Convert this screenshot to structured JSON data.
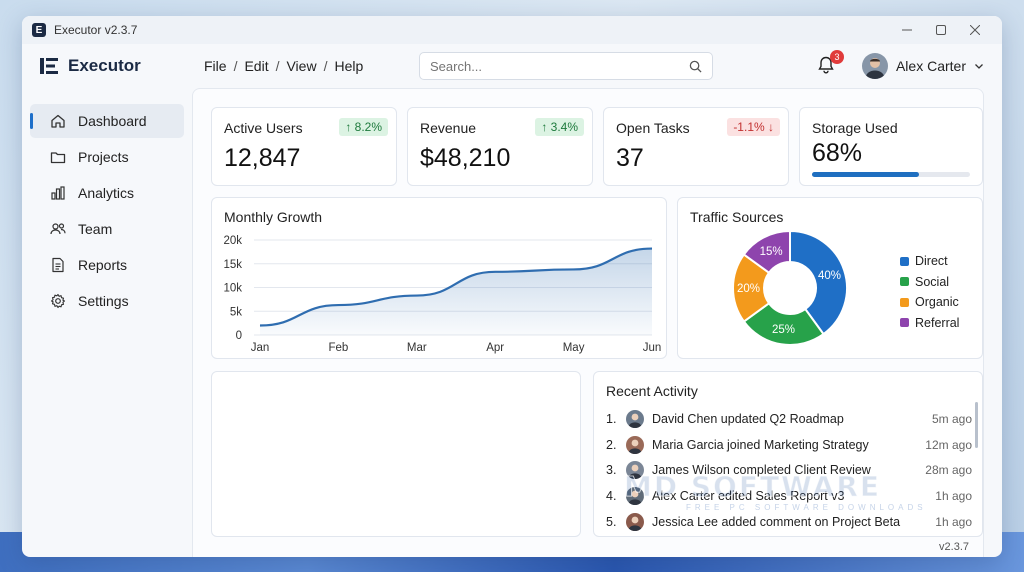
{
  "window": {
    "title": "Executor v2.3.7",
    "app_badge": "E"
  },
  "header": {
    "app_name": "Executor",
    "menu": [
      "File",
      "Edit",
      "View",
      "Help"
    ],
    "search_placeholder": "Search...",
    "notifications": 3,
    "user_name": "Alex Carter"
  },
  "sidebar": {
    "items": [
      {
        "label": "Dashboard",
        "icon": "home-icon",
        "active": true
      },
      {
        "label": "Projects",
        "icon": "folder-icon"
      },
      {
        "label": "Analytics",
        "icon": "bar-chart-icon"
      },
      {
        "label": "Team",
        "icon": "users-icon"
      },
      {
        "label": "Reports",
        "icon": "document-icon"
      },
      {
        "label": "Settings",
        "icon": "gear-icon"
      }
    ]
  },
  "kpis": {
    "active_users": {
      "title": "Active Users",
      "value": "12,847",
      "change": "↑ 8.2%"
    },
    "revenue": {
      "title": "Revenue",
      "value": "$48,210",
      "change": "↑ 3.4%"
    },
    "open_tasks": {
      "title": "Open Tasks",
      "value": "37",
      "change": "-1.1% ↓"
    },
    "storage": {
      "title": "Storage Used",
      "value": "68%",
      "fraction": 0.68
    }
  },
  "chart_data": [
    {
      "type": "area",
      "title": "Monthly Growth",
      "categories": [
        "Jan",
        "Feb",
        "Mar",
        "Apr",
        "May",
        "Jun"
      ],
      "values": [
        2000,
        6300,
        8300,
        13300,
        13800,
        18200
      ],
      "y_ticks": [
        "0",
        "5k",
        "10k",
        "15k",
        "20k"
      ],
      "ylim": [
        0,
        20000
      ],
      "grid": true,
      "color": "#2f6db0"
    },
    {
      "type": "pie",
      "title": "Traffic Sources",
      "legend_position": "right",
      "slices": [
        {
          "name": "Direct",
          "value": 40,
          "label": "40%",
          "color": "#1f6fc6"
        },
        {
          "name": "Social",
          "value": 25,
          "label": "25%",
          "color": "#27a24a"
        },
        {
          "name": "Organic",
          "value": 20,
          "label": "20%",
          "color": "#f39a1c"
        },
        {
          "name": "Referral",
          "value": 15,
          "label": "15%",
          "color": "#8e44ad"
        }
      ]
    }
  ],
  "activity": {
    "title": "Recent Activity",
    "items": [
      {
        "num": "1.",
        "text": "David Chen updated Q2 Roadmap",
        "time": "5m ago",
        "avatar_color": "#6b7a8c"
      },
      {
        "num": "2.",
        "text": "Maria Garcia joined Marketing Strategy",
        "time": "12m ago",
        "avatar_color": "#9a6a58"
      },
      {
        "num": "3.",
        "text": "James Wilson completed Client Review",
        "time": "28m ago",
        "avatar_color": "#7b8696"
      },
      {
        "num": "4.",
        "text": "Alex Carter edited Sales Report v3",
        "time": "1h ago",
        "avatar_color": "#5f6b78"
      },
      {
        "num": "5.",
        "text": "Jessica Lee added comment on Project Beta",
        "time": "1h ago",
        "avatar_color": "#8a5a4c"
      }
    ]
  },
  "footer": {
    "version": "v2.3.7"
  },
  "watermark": {
    "text": "MD SOFTWARE",
    "subtext": "FREE PC SOFTWARE DOWNLOADS"
  }
}
